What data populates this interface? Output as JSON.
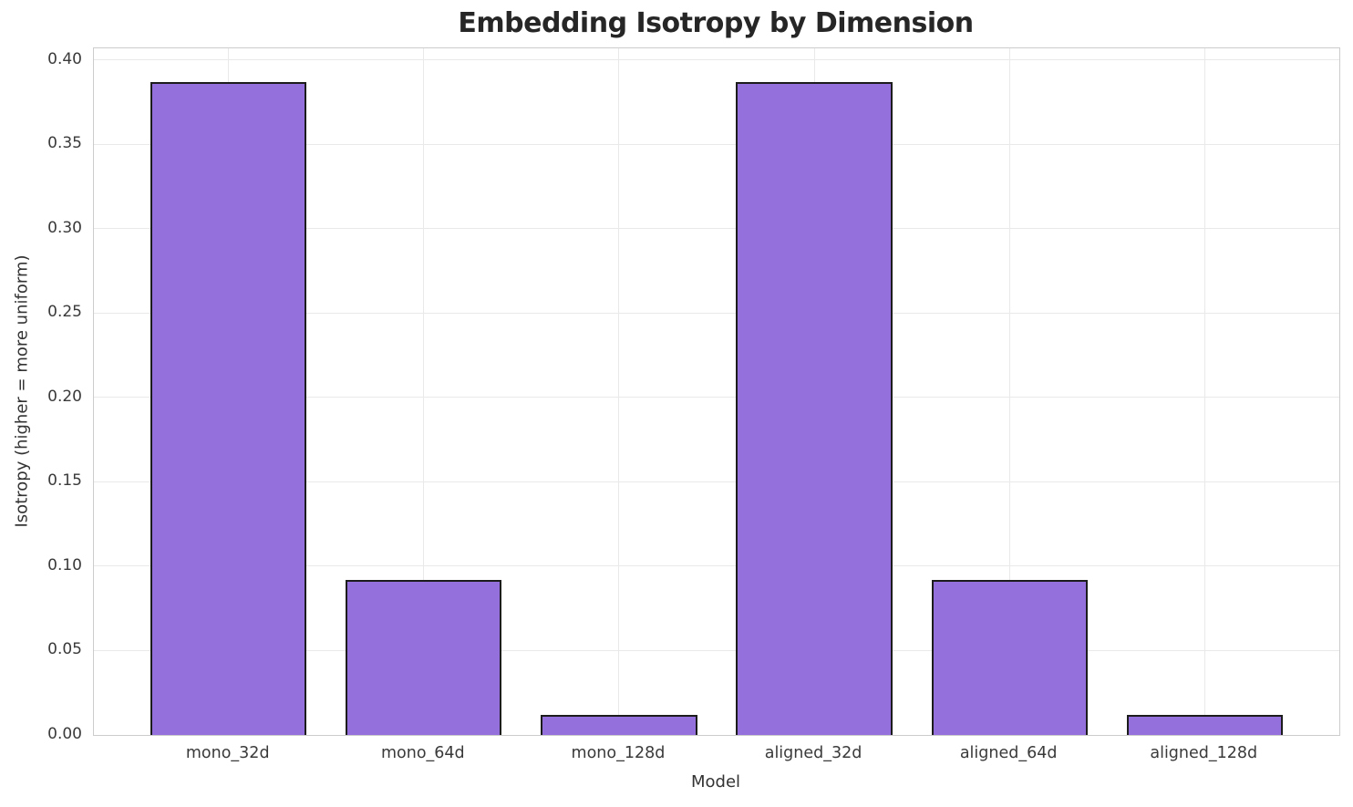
{
  "chart_data": {
    "type": "bar",
    "title": "Embedding Isotropy by Dimension",
    "xlabel": "Model",
    "ylabel": "Isotropy (higher = more uniform)",
    "categories": [
      "mono_32d",
      "mono_64d",
      "mono_128d",
      "aligned_32d",
      "aligned_64d",
      "aligned_128d"
    ],
    "values": [
      0.387,
      0.092,
      0.012,
      0.387,
      0.092,
      0.012
    ],
    "yticks": [
      "0.00",
      "0.05",
      "0.10",
      "0.15",
      "0.20",
      "0.25",
      "0.30",
      "0.35",
      "0.40"
    ],
    "ylim": [
      0,
      0.407
    ],
    "xlim": [
      -0.69,
      5.69
    ],
    "bar_width_units": 0.8,
    "grid": true,
    "legend_position": "none",
    "colors": {
      "bar_fill": "#9370db",
      "bar_edge": "#1c1c1c",
      "grid_line": "#e9e9e9",
      "spine": "#cccccc",
      "tick_text": "#3a3a3a",
      "title_text": "#262626",
      "background": "#ffffff"
    }
  }
}
